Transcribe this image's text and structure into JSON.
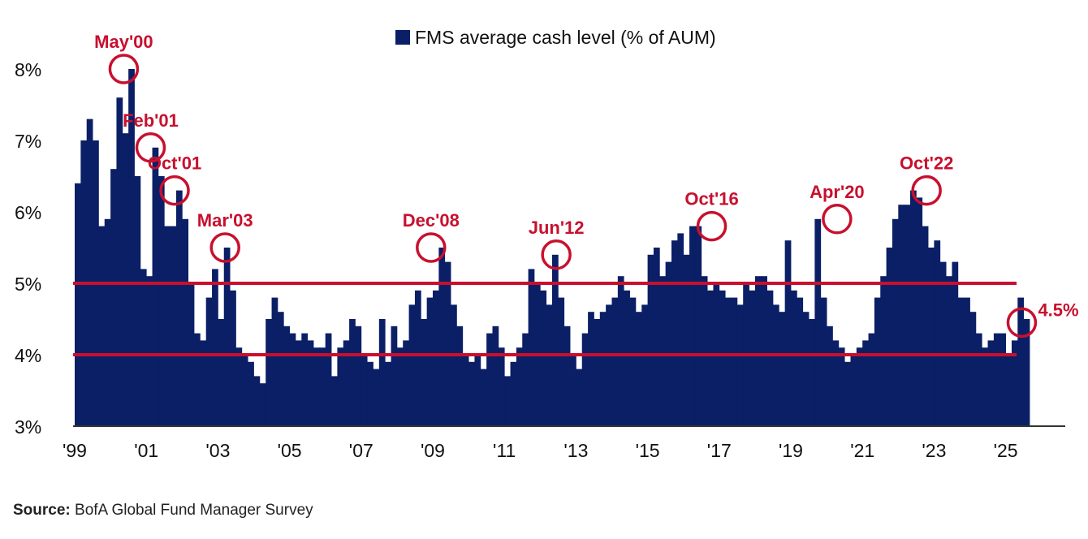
{
  "chart_data": {
    "type": "bar",
    "title": "",
    "xlabel": "",
    "ylabel": "",
    "ylim": [
      3,
      8.5
    ],
    "legend": {
      "label": "FMS average cash level (% of AUM)",
      "position": "top-center"
    },
    "grid": false,
    "y_ticks": [
      "3%",
      "4%",
      "5%",
      "6%",
      "7%",
      "8%"
    ],
    "x_ticks": [
      "'99",
      "'01",
      "'03",
      "'05",
      "'07",
      "'09",
      "'11",
      "'13",
      "'15",
      "'17",
      "'19",
      "'21",
      "'23",
      "'25"
    ],
    "reference_lines": [
      4.0,
      5.0
    ],
    "colors": {
      "bars": "#0b1f66",
      "annotation": "#c8102e",
      "axis": "#333333"
    },
    "x_start": 1999.0,
    "months_per_bar": 2,
    "values": [
      6.4,
      7.0,
      7.3,
      7.0,
      5.8,
      5.9,
      6.6,
      7.6,
      7.1,
      8.0,
      6.5,
      5.2,
      5.1,
      6.9,
      6.5,
      5.8,
      5.8,
      6.3,
      5.9,
      5.0,
      4.3,
      4.2,
      4.8,
      5.2,
      4.5,
      5.5,
      4.9,
      4.1,
      4.0,
      3.9,
      3.7,
      3.6,
      4.5,
      4.8,
      4.6,
      4.4,
      4.3,
      4.2,
      4.3,
      4.2,
      4.1,
      4.1,
      4.3,
      3.7,
      4.1,
      4.2,
      4.5,
      4.4,
      4.0,
      3.9,
      3.8,
      4.5,
      3.9,
      4.4,
      4.1,
      4.2,
      4.7,
      4.9,
      4.5,
      4.8,
      4.9,
      5.5,
      5.3,
      4.7,
      4.4,
      4.0,
      3.9,
      4.0,
      3.8,
      4.3,
      4.4,
      4.1,
      3.7,
      3.9,
      4.1,
      4.3,
      5.2,
      5.0,
      4.9,
      4.7,
      5.4,
      4.8,
      4.4,
      4.0,
      3.8,
      4.3,
      4.6,
      4.5,
      4.6,
      4.7,
      4.8,
      5.1,
      4.9,
      4.8,
      4.6,
      4.7,
      5.4,
      5.5,
      5.1,
      5.3,
      5.6,
      5.7,
      5.4,
      5.8,
      5.8,
      5.1,
      4.9,
      5.0,
      4.9,
      4.8,
      4.8,
      4.7,
      5.0,
      4.9,
      5.1,
      5.1,
      4.9,
      4.7,
      4.6,
      5.6,
      4.9,
      4.8,
      4.6,
      4.5,
      5.9,
      4.8,
      4.4,
      4.2,
      4.1,
      3.9,
      4.0,
      4.1,
      4.2,
      4.3,
      4.8,
      5.1,
      5.5,
      5.9,
      6.1,
      6.1,
      6.3,
      6.2,
      5.8,
      5.5,
      5.6,
      5.3,
      5.1,
      5.3,
      4.8,
      4.8,
      4.6,
      4.3,
      4.1,
      4.2,
      4.3,
      4.3,
      4.0,
      4.2,
      4.8,
      4.5
    ],
    "annotations": [
      {
        "label": "May'00",
        "x": 2000.37,
        "y": 8.0
      },
      {
        "label": "Feb'01",
        "x": 2001.12,
        "y": 6.9
      },
      {
        "label": "Oct'01",
        "x": 2001.79,
        "y": 6.3
      },
      {
        "label": "Mar'03",
        "x": 2003.2,
        "y": 5.5
      },
      {
        "label": "Dec'08",
        "x": 2008.95,
        "y": 5.5
      },
      {
        "label": "Jun'12",
        "x": 2012.45,
        "y": 5.4
      },
      {
        "label": "Oct'16",
        "x": 2016.79,
        "y": 5.8
      },
      {
        "label": "Apr'20",
        "x": 2020.29,
        "y": 5.9
      },
      {
        "label": "Oct'22",
        "x": 2022.79,
        "y": 6.3
      },
      {
        "label": "4.5%",
        "x": 2025.45,
        "y": 4.45
      }
    ]
  },
  "source": {
    "prefix": "Source:",
    "text": " BofA Global Fund Manager Survey"
  }
}
